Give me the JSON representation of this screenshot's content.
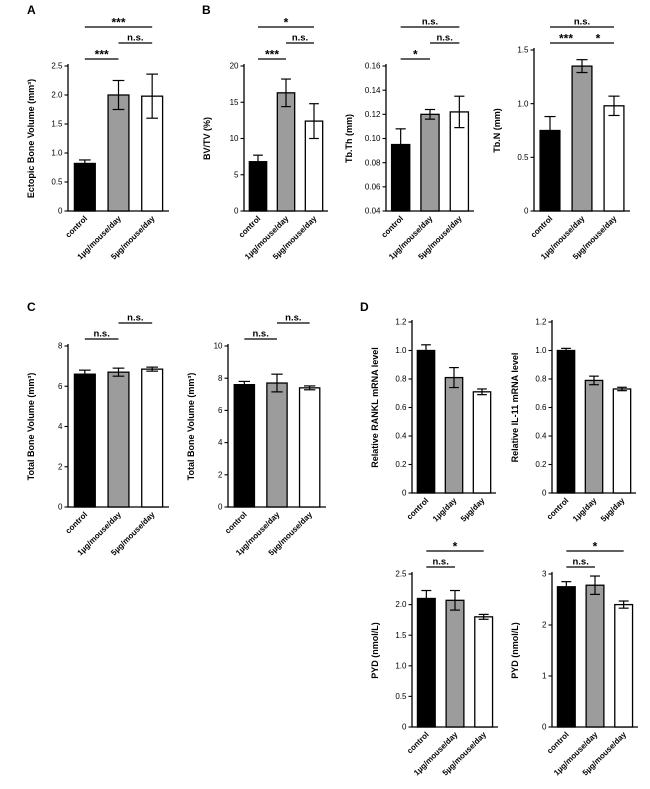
{
  "figure": {
    "background": "#ffffff",
    "panels": [
      {
        "id": "A",
        "label": "A"
      },
      {
        "id": "B",
        "label": "B"
      },
      {
        "id": "C",
        "label": "C"
      },
      {
        "id": "D",
        "label": "D"
      }
    ]
  },
  "chart_data": [
    {
      "type": "bar",
      "panel": "A",
      "name": "ectopic-bone-volume",
      "title": "",
      "xlabel": "",
      "ylabel": "Ectopic Bone Volume (mm³)",
      "ylim": [
        0,
        2.5
      ],
      "yticks": [
        0,
        0.5,
        1.0,
        1.5,
        2.0,
        2.5
      ],
      "ytick_labels": [
        "0",
        "0.5",
        "1.0",
        "1.5",
        "2.0",
        "2.5"
      ],
      "categories": [
        "control",
        "1µg/mouse/day",
        "5µg/mouse/day"
      ],
      "values": [
        0.82,
        2.0,
        1.98
      ],
      "errors": [
        0.06,
        0.25,
        0.38
      ],
      "colors": [
        "#000000",
        "#9c9c9c",
        "#ffffff"
      ],
      "grid": false,
      "legend": null,
      "brackets": [
        {
          "from": 0,
          "to": 1,
          "label": "***",
          "level": 0
        },
        {
          "from": 1,
          "to": 2,
          "label": "n.s.",
          "level": 1
        },
        {
          "from": 0,
          "to": 2,
          "label": "***",
          "level": 2
        }
      ]
    },
    {
      "type": "bar",
      "panel": "B",
      "name": "bv-tv",
      "title": "",
      "xlabel": "",
      "ylabel": "BV/TV (%)",
      "ylim": [
        0,
        20
      ],
      "yticks": [
        0,
        5,
        10,
        15,
        20
      ],
      "ytick_labels": [
        "0",
        "5",
        "10",
        "15",
        "20"
      ],
      "categories": [
        "control",
        "1µg/mouse/day",
        "5µg/mouse/day"
      ],
      "values": [
        6.8,
        16.3,
        12.4
      ],
      "errors": [
        0.9,
        1.9,
        2.4
      ],
      "colors": [
        "#000000",
        "#9c9c9c",
        "#ffffff"
      ],
      "grid": false,
      "legend": null,
      "brackets": [
        {
          "from": 0,
          "to": 1,
          "label": "***",
          "level": 0
        },
        {
          "from": 1,
          "to": 2,
          "label": "n.s.",
          "level": 1
        },
        {
          "from": 0,
          "to": 2,
          "label": "*",
          "level": 2
        }
      ]
    },
    {
      "type": "bar",
      "panel": "B",
      "name": "tb-th",
      "title": "",
      "xlabel": "",
      "ylabel": "Tb.Th (mm)",
      "ylim": [
        0.04,
        0.16
      ],
      "yticks": [
        0.04,
        0.06,
        0.08,
        0.1,
        0.12,
        0.14,
        0.16
      ],
      "ytick_labels": [
        "0.04",
        "0.06",
        "0.08",
        "0.10",
        "0.12",
        "0.14",
        "0.16"
      ],
      "categories": [
        "control",
        "1µg/mouse/day",
        "5µg/mouse/day"
      ],
      "values": [
        0.095,
        0.12,
        0.122
      ],
      "errors": [
        0.013,
        0.004,
        0.013
      ],
      "colors": [
        "#000000",
        "#9c9c9c",
        "#ffffff"
      ],
      "grid": false,
      "legend": null,
      "brackets": [
        {
          "from": 0,
          "to": 1,
          "label": "*",
          "level": 0
        },
        {
          "from": 1,
          "to": 2,
          "label": "n.s.",
          "level": 1
        },
        {
          "from": 0,
          "to": 2,
          "label": "n.s.",
          "level": 2
        }
      ]
    },
    {
      "type": "bar",
      "panel": "B",
      "name": "tb-n",
      "title": "",
      "xlabel": "",
      "ylabel": "Tb.N (mm)",
      "ylim": [
        0,
        1.5
      ],
      "yticks": [
        0,
        0.5,
        1.0,
        1.5
      ],
      "ytick_labels": [
        "0",
        "0.5",
        "1.0",
        "1.5"
      ],
      "categories": [
        "control",
        "1µg/mouse/day",
        "5µg/mouse/day"
      ],
      "values": [
        0.75,
        1.35,
        0.98
      ],
      "errors": [
        0.13,
        0.06,
        0.09
      ],
      "colors": [
        "#000000",
        "#9c9c9c",
        "#ffffff"
      ],
      "grid": false,
      "legend": null,
      "brackets": [
        {
          "from": 0,
          "to": 1,
          "label": "***",
          "level": 0
        },
        {
          "from": 1,
          "to": 2,
          "label": "*",
          "level": 0
        },
        {
          "from": 0,
          "to": 2,
          "label": "n.s.",
          "level": 1
        }
      ]
    },
    {
      "type": "bar",
      "panel": "C",
      "name": "total-bone-volume-1",
      "title": "",
      "xlabel": "",
      "ylabel": "Total Bone Volume (mm³)",
      "ylim": [
        0,
        8
      ],
      "yticks": [
        0,
        2,
        4,
        6,
        8
      ],
      "ytick_labels": [
        "0",
        "2",
        "4",
        "6",
        "8"
      ],
      "categories": [
        "control",
        "1µg/mouse/day",
        "5µg/mouse/day"
      ],
      "values": [
        6.6,
        6.7,
        6.85
      ],
      "errors": [
        0.2,
        0.2,
        0.1
      ],
      "colors": [
        "#000000",
        "#9c9c9c",
        "#ffffff"
      ],
      "grid": false,
      "legend": null,
      "brackets": [
        {
          "from": 0,
          "to": 1,
          "label": "n.s.",
          "level": 0
        },
        {
          "from": 1,
          "to": 2,
          "label": "n.s.",
          "level": 1
        }
      ]
    },
    {
      "type": "bar",
      "panel": "C",
      "name": "total-bone-volume-2",
      "title": "",
      "xlabel": "",
      "ylabel": "Total Bone Volume (mm³)",
      "ylim": [
        0,
        10
      ],
      "yticks": [
        0,
        2,
        4,
        6,
        8,
        10
      ],
      "ytick_labels": [
        "0",
        "2",
        "4",
        "6",
        "8",
        "10"
      ],
      "categories": [
        "control",
        "1µg/mouse/day",
        "5µg/mouse/day"
      ],
      "values": [
        7.6,
        7.7,
        7.4
      ],
      "errors": [
        0.2,
        0.55,
        0.12
      ],
      "colors": [
        "#000000",
        "#9c9c9c",
        "#ffffff"
      ],
      "grid": false,
      "legend": null,
      "brackets": [
        {
          "from": 0,
          "to": 1,
          "label": "n.s.",
          "level": 0
        },
        {
          "from": 1,
          "to": 2,
          "label": "n.s.",
          "level": 1
        }
      ]
    },
    {
      "type": "bar",
      "panel": "D",
      "name": "relative-rankl-mrna",
      "title": "",
      "xlabel": "",
      "ylabel": "Relative RANKL mRNA level",
      "ylim": [
        0,
        1.2
      ],
      "yticks": [
        0,
        0.2,
        0.4,
        0.6,
        0.8,
        1.0,
        1.2
      ],
      "ytick_labels": [
        "0",
        "0.2",
        "0.4",
        "0.6",
        "0.8",
        "1.0",
        "1.2"
      ],
      "categories": [
        "control",
        "1µg/day",
        "5µg/day"
      ],
      "values": [
        1.0,
        0.81,
        0.71
      ],
      "errors": [
        0.04,
        0.07,
        0.02
      ],
      "colors": [
        "#000000",
        "#9c9c9c",
        "#ffffff"
      ],
      "grid": false,
      "legend": null,
      "brackets": []
    },
    {
      "type": "bar",
      "panel": "D",
      "name": "relative-il11-mrna",
      "title": "",
      "xlabel": "",
      "ylabel": "Relative IL-11 mRNA level",
      "ylim": [
        0,
        1.2
      ],
      "yticks": [
        0,
        0.2,
        0.4,
        0.6,
        0.8,
        1.0,
        1.2
      ],
      "ytick_labels": [
        "0",
        "0.2",
        "0.4",
        "0.6",
        "0.8",
        "1.0",
        "1.2"
      ],
      "categories": [
        "control",
        "1µg/day",
        "5µg/day"
      ],
      "values": [
        1.0,
        0.79,
        0.73
      ],
      "errors": [
        0.015,
        0.03,
        0.012
      ],
      "colors": [
        "#000000",
        "#9c9c9c",
        "#ffffff"
      ],
      "grid": false,
      "legend": null,
      "brackets": []
    },
    {
      "type": "bar",
      "panel": "D",
      "name": "pyd-1",
      "title": "",
      "xlabel": "",
      "ylabel": "PYD (nmol/L)",
      "ylim": [
        0,
        2.5
      ],
      "yticks": [
        0,
        0.5,
        1.0,
        1.5,
        2.0,
        2.5
      ],
      "ytick_labels": [
        "0",
        "0.5",
        "1.0",
        "1.5",
        "2.0",
        "2.5"
      ],
      "categories": [
        "control",
        "1µg/mouse/day",
        "5µg/mouse/day"
      ],
      "values": [
        2.1,
        2.07,
        1.8
      ],
      "errors": [
        0.13,
        0.16,
        0.04
      ],
      "colors": [
        "#000000",
        "#9c9c9c",
        "#ffffff"
      ],
      "grid": false,
      "legend": null,
      "brackets": [
        {
          "from": 0,
          "to": 1,
          "label": "n.s.",
          "level": 0
        },
        {
          "from": 0,
          "to": 2,
          "label": "*",
          "level": 1
        }
      ]
    },
    {
      "type": "bar",
      "panel": "D",
      "name": "pyd-2",
      "title": "",
      "xlabel": "",
      "ylabel": "PYD (nmol/L)",
      "ylim": [
        0,
        3
      ],
      "yticks": [
        0,
        1,
        2,
        3
      ],
      "ytick_labels": [
        "0",
        "1",
        "2",
        "3"
      ],
      "categories": [
        "control",
        "1µg/mouse/day",
        "5µg/mouse/day"
      ],
      "values": [
        2.75,
        2.78,
        2.4
      ],
      "errors": [
        0.1,
        0.18,
        0.07
      ],
      "colors": [
        "#000000",
        "#9c9c9c",
        "#ffffff"
      ],
      "grid": false,
      "legend": null,
      "brackets": [
        {
          "from": 0,
          "to": 1,
          "label": "n.s.",
          "level": 0
        },
        {
          "from": 0,
          "to": 2,
          "label": "*",
          "level": 1
        }
      ]
    }
  ]
}
